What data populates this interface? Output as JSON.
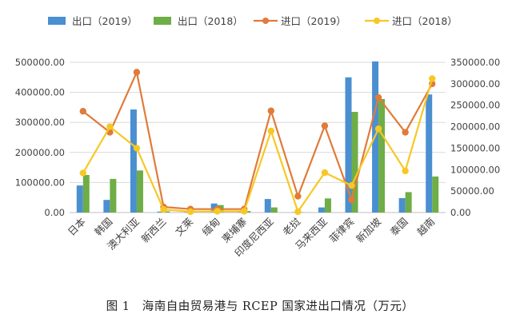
{
  "caption": {
    "figure_label": "图 1",
    "title": "海南自由贸易港与 RCEP 国家进出口情况（万元）"
  },
  "chart_data": {
    "type": "bar+line",
    "categories": [
      "日本",
      "韩国",
      "澳大利亚",
      "新西兰",
      "文莱",
      "缅甸",
      "柬埔寨",
      "印度尼西亚",
      "老挝",
      "马来西亚",
      "菲律宾",
      "新加坡",
      "泰国",
      "越南"
    ],
    "left_axis": {
      "ylim": [
        0,
        500000
      ],
      "ticks": [
        "0.00",
        "100000.00",
        "200000.00",
        "300000.00",
        "400000.00",
        "500000.00"
      ]
    },
    "right_axis": {
      "ylim": [
        0,
        350000
      ],
      "ticks": [
        "0.00",
        "50000.00",
        "100000.00",
        "150000.00",
        "200000.00",
        "250000.00",
        "300000.00",
        "350000.00"
      ]
    },
    "series": [
      {
        "name": "出口（2019）",
        "kind": "bar",
        "axis": "left",
        "color": "#4a8fd0",
        "values": [
          90000,
          42000,
          343000,
          3000,
          1000,
          30000,
          5000,
          45000,
          1000,
          17000,
          450000,
          503000,
          48000,
          393000
        ]
      },
      {
        "name": "出口（2018）",
        "kind": "bar",
        "axis": "left",
        "color": "#6fad46",
        "values": [
          125000,
          112000,
          140000,
          4000,
          1000,
          25000,
          5000,
          17000,
          1000,
          47000,
          335000,
          378000,
          68000,
          120000
        ]
      },
      {
        "name": "进口（2019）",
        "kind": "line",
        "axis": "right",
        "color": "#e07b39",
        "values": [
          236000,
          187000,
          327000,
          13000,
          8000,
          8000,
          8000,
          237000,
          38000,
          202000,
          30000,
          268000,
          187000,
          300000
        ]
      },
      {
        "name": "进口（2018）",
        "kind": "line",
        "axis": "right",
        "color": "#f7c825",
        "values": [
          92000,
          200000,
          150000,
          7000,
          2000,
          3000,
          3000,
          190000,
          2000,
          93000,
          63000,
          195000,
          97000,
          312000
        ]
      }
    ],
    "legend_position": "top",
    "grid": true
  }
}
